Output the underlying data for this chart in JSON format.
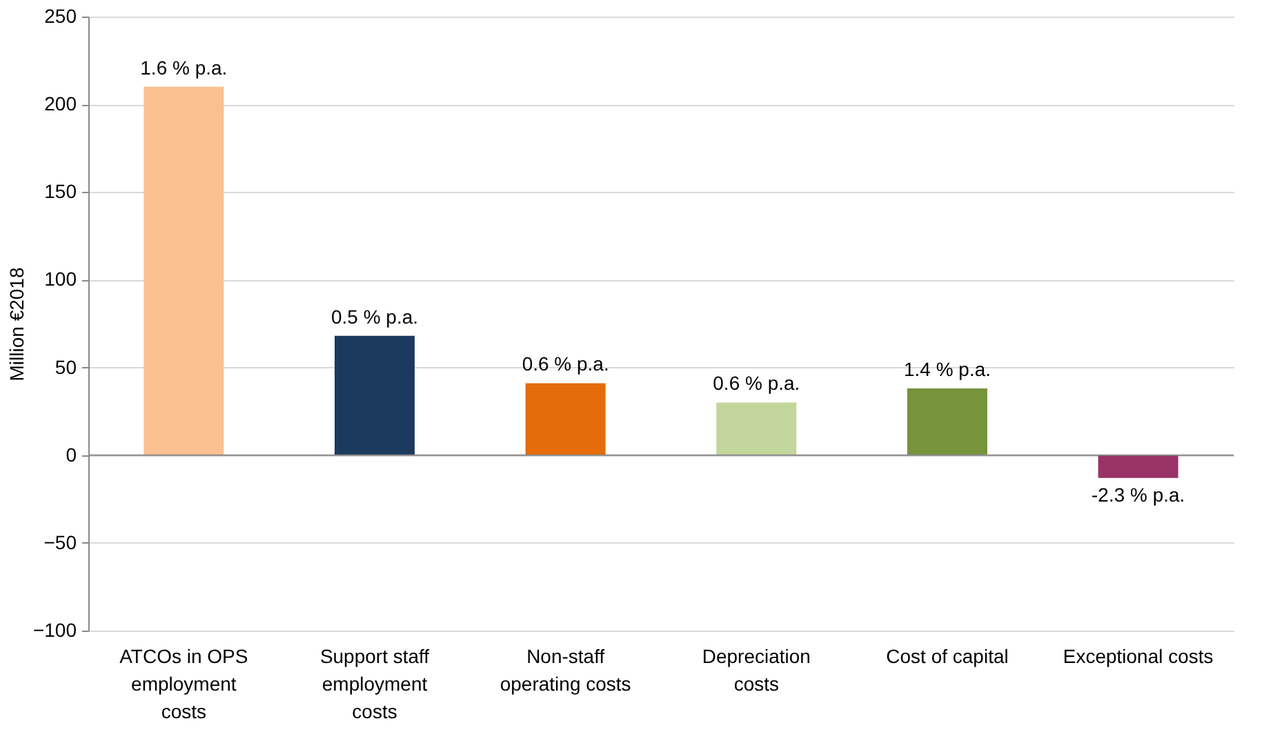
{
  "chart_data": {
    "type": "bar",
    "ylabel": "Million €2018",
    "categories": [
      "ATCOs in OPS employment costs",
      "Support staff employment costs",
      "Non-staff operating costs",
      "Depreciation costs",
      "Cost of capital",
      "Exceptional costs"
    ],
    "values": [
      210,
      68,
      41,
      30,
      38,
      -13
    ],
    "colors": [
      "#fac090",
      "#1b3a5e",
      "#e46c0a",
      "#c3d69b",
      "#77933c",
      "#993366"
    ],
    "annotations": [
      {
        "text": "1.6 % p.a.",
        "x": "ATCOs in OPS employment costs",
        "y": 210
      },
      {
        "text": "0.5 % p.a.",
        "x": "Support staff employment costs",
        "y": 68
      },
      {
        "text": "0.6 % p.a.",
        "x": "Non-staff operating costs",
        "y": 41
      },
      {
        "text": "0.6 % p.a.",
        "x": "Depreciation costs",
        "y": 30
      },
      {
        "text": "1.4 % p.a.",
        "x": "Cost of capital",
        "y": 38
      },
      {
        "text": "-2.3 % p.a.",
        "x": "Exceptional costs",
        "y": -13
      }
    ],
    "ylim": [
      -100,
      250
    ],
    "yticks": [
      -100,
      -50,
      0,
      50,
      100,
      150,
      200,
      250
    ],
    "grid": "y"
  }
}
